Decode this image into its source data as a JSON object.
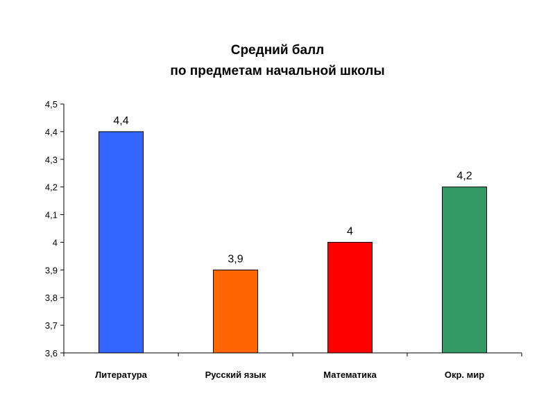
{
  "chart_data": {
    "type": "bar",
    "title_lines": [
      "Средний   балл",
      "по предметам  начальной  школы"
    ],
    "categories": [
      "Литература",
      "Русский язык",
      "Математика",
      "Окр. мир"
    ],
    "values": [
      4.4,
      3.9,
      4,
      4.2
    ],
    "data_labels": [
      "4,4",
      "3,9",
      "4",
      "4,2"
    ],
    "bar_colors": [
      "#3366ff",
      "#ff6600",
      "#ff0000",
      "#339966"
    ],
    "ylim": [
      3.6,
      4.5
    ],
    "yticks": [
      3.6,
      3.7,
      3.8,
      3.9,
      4,
      4.1,
      4.2,
      4.3,
      4.4,
      4.5
    ],
    "ytick_labels": [
      "3,6",
      "3,7",
      "3,8",
      "3,9",
      "4",
      "4,1",
      "4,2",
      "4,3",
      "4,4",
      "4,5"
    ],
    "xlabel": "",
    "ylabel": "",
    "grid": false,
    "legend": false
  }
}
